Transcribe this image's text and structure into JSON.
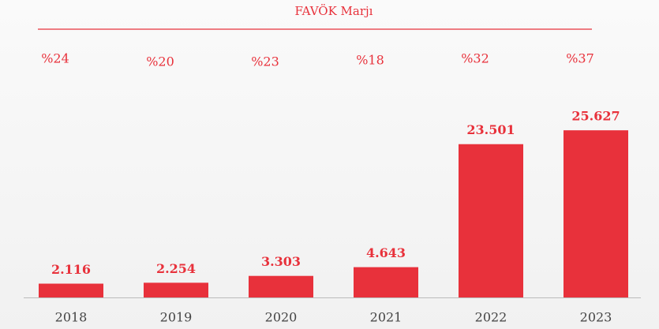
{
  "chart_data": {
    "type": "bar",
    "categories": [
      "2018",
      "2019",
      "2020",
      "2021",
      "2022",
      "2023"
    ],
    "values": [
      2116,
      2254,
      3303,
      4643,
      23501,
      25627
    ],
    "value_labels": [
      "2.116",
      "2.254",
      "3.303",
      "4.643",
      "23.501",
      "25.627"
    ],
    "color": "#e8313b",
    "ylim": [
      0,
      30000
    ],
    "margin": {
      "title": "FAVÖK Marjı",
      "values": [
        24,
        20,
        23,
        18,
        32,
        37
      ],
      "value_labels": [
        "%24",
        "%20",
        "%23",
        "%18",
        "%32",
        "%37"
      ]
    }
  }
}
